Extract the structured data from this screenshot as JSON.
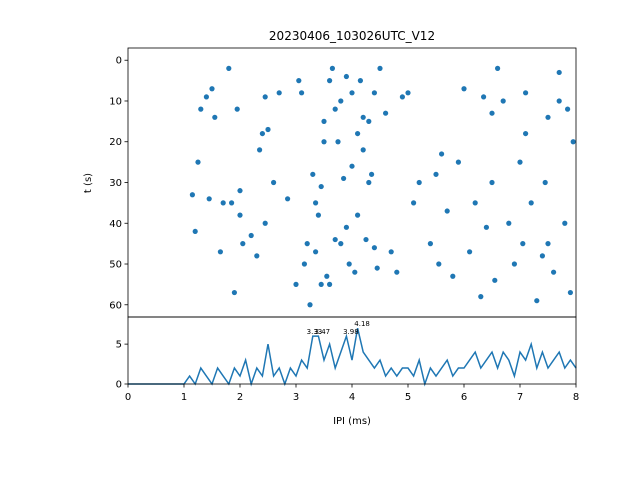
{
  "chart_data": [
    {
      "type": "scatter",
      "title": "20230406_103026UTC_V12",
      "ylabel": "t (s)",
      "color": "#1f77b4",
      "x": [
        1.15,
        1.2,
        1.25,
        1.3,
        1.4,
        1.45,
        1.5,
        1.55,
        1.65,
        1.7,
        1.8,
        1.85,
        1.9,
        1.95,
        2.0,
        2.0,
        2.05,
        2.2,
        2.3,
        2.35,
        2.4,
        2.45,
        2.45,
        2.5,
        2.6,
        2.7,
        2.85,
        3.0,
        3.05,
        3.1,
        3.15,
        3.2,
        3.25,
        3.3,
        3.35,
        3.4,
        3.45,
        3.5,
        3.55,
        3.6,
        3.65,
        3.7,
        3.75,
        3.8,
        3.85,
        3.9,
        3.95,
        4.0,
        4.05,
        4.1,
        4.15,
        4.2,
        4.25,
        4.3,
        4.35,
        4.4,
        4.45,
        4.5,
        4.6,
        4.7,
        4.8,
        4.9,
        5.0,
        5.1,
        5.2,
        5.4,
        5.5,
        5.55,
        5.6,
        5.7,
        5.8,
        5.9,
        6.0,
        6.1,
        6.2,
        6.3,
        6.35,
        6.4,
        6.5,
        6.55,
        6.6,
        6.7,
        6.8,
        6.9,
        7.0,
        7.05,
        7.1,
        7.2,
        7.3,
        7.4,
        7.45,
        7.5,
        7.6,
        7.7,
        7.8,
        7.85,
        7.9,
        7.95,
        3.35,
        3.5,
        3.6,
        3.8,
        4.0,
        4.2,
        4.4,
        3.45,
        3.7,
        3.9,
        4.1,
        4.3,
        6.5,
        7.1,
        7.5,
        7.7
      ],
      "y": [
        33,
        42,
        25,
        12,
        9,
        34,
        7,
        14,
        47,
        35,
        2,
        35,
        57,
        12,
        38,
        32,
        45,
        43,
        48,
        22,
        18,
        9,
        40,
        17,
        30,
        8,
        34,
        55,
        5,
        8,
        50,
        45,
        60,
        28,
        47,
        38,
        31,
        15,
        53,
        55,
        2,
        44,
        20,
        10,
        29,
        41,
        50,
        8,
        52,
        18,
        5,
        14,
        44,
        30,
        28,
        46,
        51,
        2,
        13,
        47,
        52,
        9,
        8,
        35,
        30,
        45,
        28,
        50,
        23,
        37,
        53,
        25,
        7,
        47,
        35,
        58,
        9,
        41,
        13,
        54,
        2,
        10,
        40,
        50,
        25,
        45,
        8,
        35,
        59,
        48,
        30,
        14,
        52,
        3,
        40,
        12,
        57,
        20,
        35,
        20,
        5,
        45,
        26,
        22,
        8,
        55,
        12,
        4,
        38,
        15,
        30,
        18,
        45,
        10
      ],
      "xlim": [
        0,
        8
      ],
      "ylim": [
        -3,
        63
      ],
      "y_inverted": true,
      "yticks": [
        0,
        10,
        20,
        30,
        40,
        50,
        60
      ]
    },
    {
      "type": "line",
      "xlabel": "IPI (ms)",
      "color": "#1f77b4",
      "x": [
        0,
        0.1,
        0.2,
        0.3,
        0.4,
        0.5,
        0.6,
        0.7,
        0.8,
        0.9,
        1.0,
        1.1,
        1.2,
        1.3,
        1.4,
        1.5,
        1.6,
        1.7,
        1.8,
        1.9,
        2.0,
        2.1,
        2.2,
        2.3,
        2.4,
        2.5,
        2.6,
        2.7,
        2.8,
        2.9,
        3.0,
        3.1,
        3.2,
        3.3,
        3.4,
        3.5,
        3.6,
        3.7,
        3.8,
        3.9,
        4.0,
        4.1,
        4.2,
        4.3,
        4.4,
        4.5,
        4.6,
        4.7,
        4.8,
        4.9,
        5.0,
        5.1,
        5.2,
        5.3,
        5.4,
        5.5,
        5.6,
        5.7,
        5.8,
        5.9,
        6.0,
        6.1,
        6.2,
        6.3,
        6.4,
        6.5,
        6.6,
        6.7,
        6.8,
        6.9,
        7.0,
        7.1,
        7.2,
        7.3,
        7.4,
        7.5,
        7.6,
        7.7,
        7.8,
        7.9,
        8.0
      ],
      "values": [
        0,
        0,
        0,
        0,
        0,
        0,
        0,
        0,
        0,
        0,
        0,
        1,
        0,
        2,
        1,
        0,
        2,
        1,
        0,
        2,
        1,
        3,
        0,
        2,
        1,
        5,
        1,
        2,
        0,
        2,
        1,
        3,
        2,
        6,
        6,
        3,
        5,
        2,
        4,
        6,
        3,
        7,
        4,
        3,
        2,
        3,
        1,
        2,
        1,
        2,
        2,
        1,
        3,
        0,
        2,
        1,
        2,
        3,
        1,
        2,
        2,
        3,
        4,
        2,
        3,
        4,
        2,
        4,
        3,
        1,
        4,
        3,
        5,
        2,
        4,
        2,
        3,
        4,
        2,
        3,
        2
      ],
      "annotations": [
        {
          "x": 3.33,
          "y": 6
        },
        {
          "x": 3.47,
          "y": 6
        },
        {
          "x": 3.98,
          "y": 6
        },
        {
          "x": 4.18,
          "y": 7
        }
      ],
      "xlim": [
        0,
        8
      ],
      "ylim": [
        0,
        8.4
      ],
      "xticks": [
        0,
        1,
        2,
        3,
        4,
        5,
        6,
        7,
        8
      ],
      "yticks": [
        0,
        5
      ]
    }
  ]
}
